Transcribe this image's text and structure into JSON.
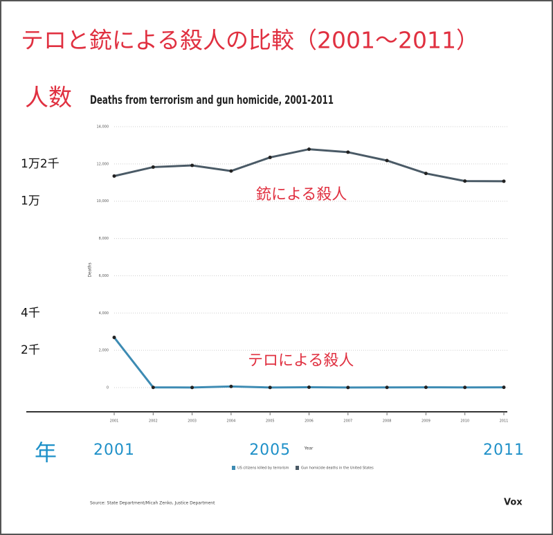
{
  "chart_data": {
    "type": "line",
    "title": "Deaths from terrorism and gun homicide, 2001-2011",
    "x_label": "Year",
    "y_label": "Deaths",
    "x": [
      2001,
      2002,
      2003,
      2004,
      2005,
      2006,
      2007,
      2008,
      2009,
      2010,
      2011
    ],
    "xlim": [
      2001,
      2011
    ],
    "xticks": [
      2001,
      2002,
      2003,
      2004,
      2005,
      2006,
      2007,
      2008,
      2009,
      2010,
      2011
    ],
    "ylim": [
      0,
      14000
    ],
    "yticks": [
      0,
      {
        "value": 2000,
        "label": "2,000"
      },
      {
        "value": 4000,
        "label": "4,000"
      },
      {
        "value": 6000,
        "label": "6,000"
      },
      {
        "value": 8000,
        "label": "8,000"
      },
      {
        "value": 10000,
        "label": "10,000"
      },
      {
        "value": 12000,
        "label": "12,000"
      },
      {
        "value": 14000,
        "label": "14,000"
      }
    ],
    "grid": true,
    "legend": "bottom",
    "series": [
      {
        "name": "US citizens killed by terrorism",
        "color": "#3d8bb3",
        "values": [
          2690,
          10,
          5,
          60,
          5,
          20,
          5,
          10,
          15,
          10,
          15
        ]
      },
      {
        "name": "Gun homicide deaths in the United States",
        "color": "#4a5a66",
        "values": [
          11350,
          11830,
          11920,
          11620,
          12350,
          12790,
          12630,
          12180,
          11490,
          11080,
          11070
        ]
      }
    ],
    "source": "Source: State Department/Micah Zenko, Justice Department",
    "brand": "Vox"
  },
  "overlay": {
    "title": "テロと銃による殺人の比較（2001～2011）",
    "y_unit": "人数",
    "x_unit": "年",
    "y_marks": [
      {
        "value": 12000,
        "label": "1万2千"
      },
      {
        "value": 10000,
        "label": "1万"
      },
      {
        "value": 4000,
        "label": "4千"
      },
      {
        "value": 2000,
        "label": "2千"
      }
    ],
    "x_marks": [
      2001,
      2005,
      2011
    ],
    "series_labels": [
      "テロによる殺人",
      "銃による殺人"
    ]
  }
}
